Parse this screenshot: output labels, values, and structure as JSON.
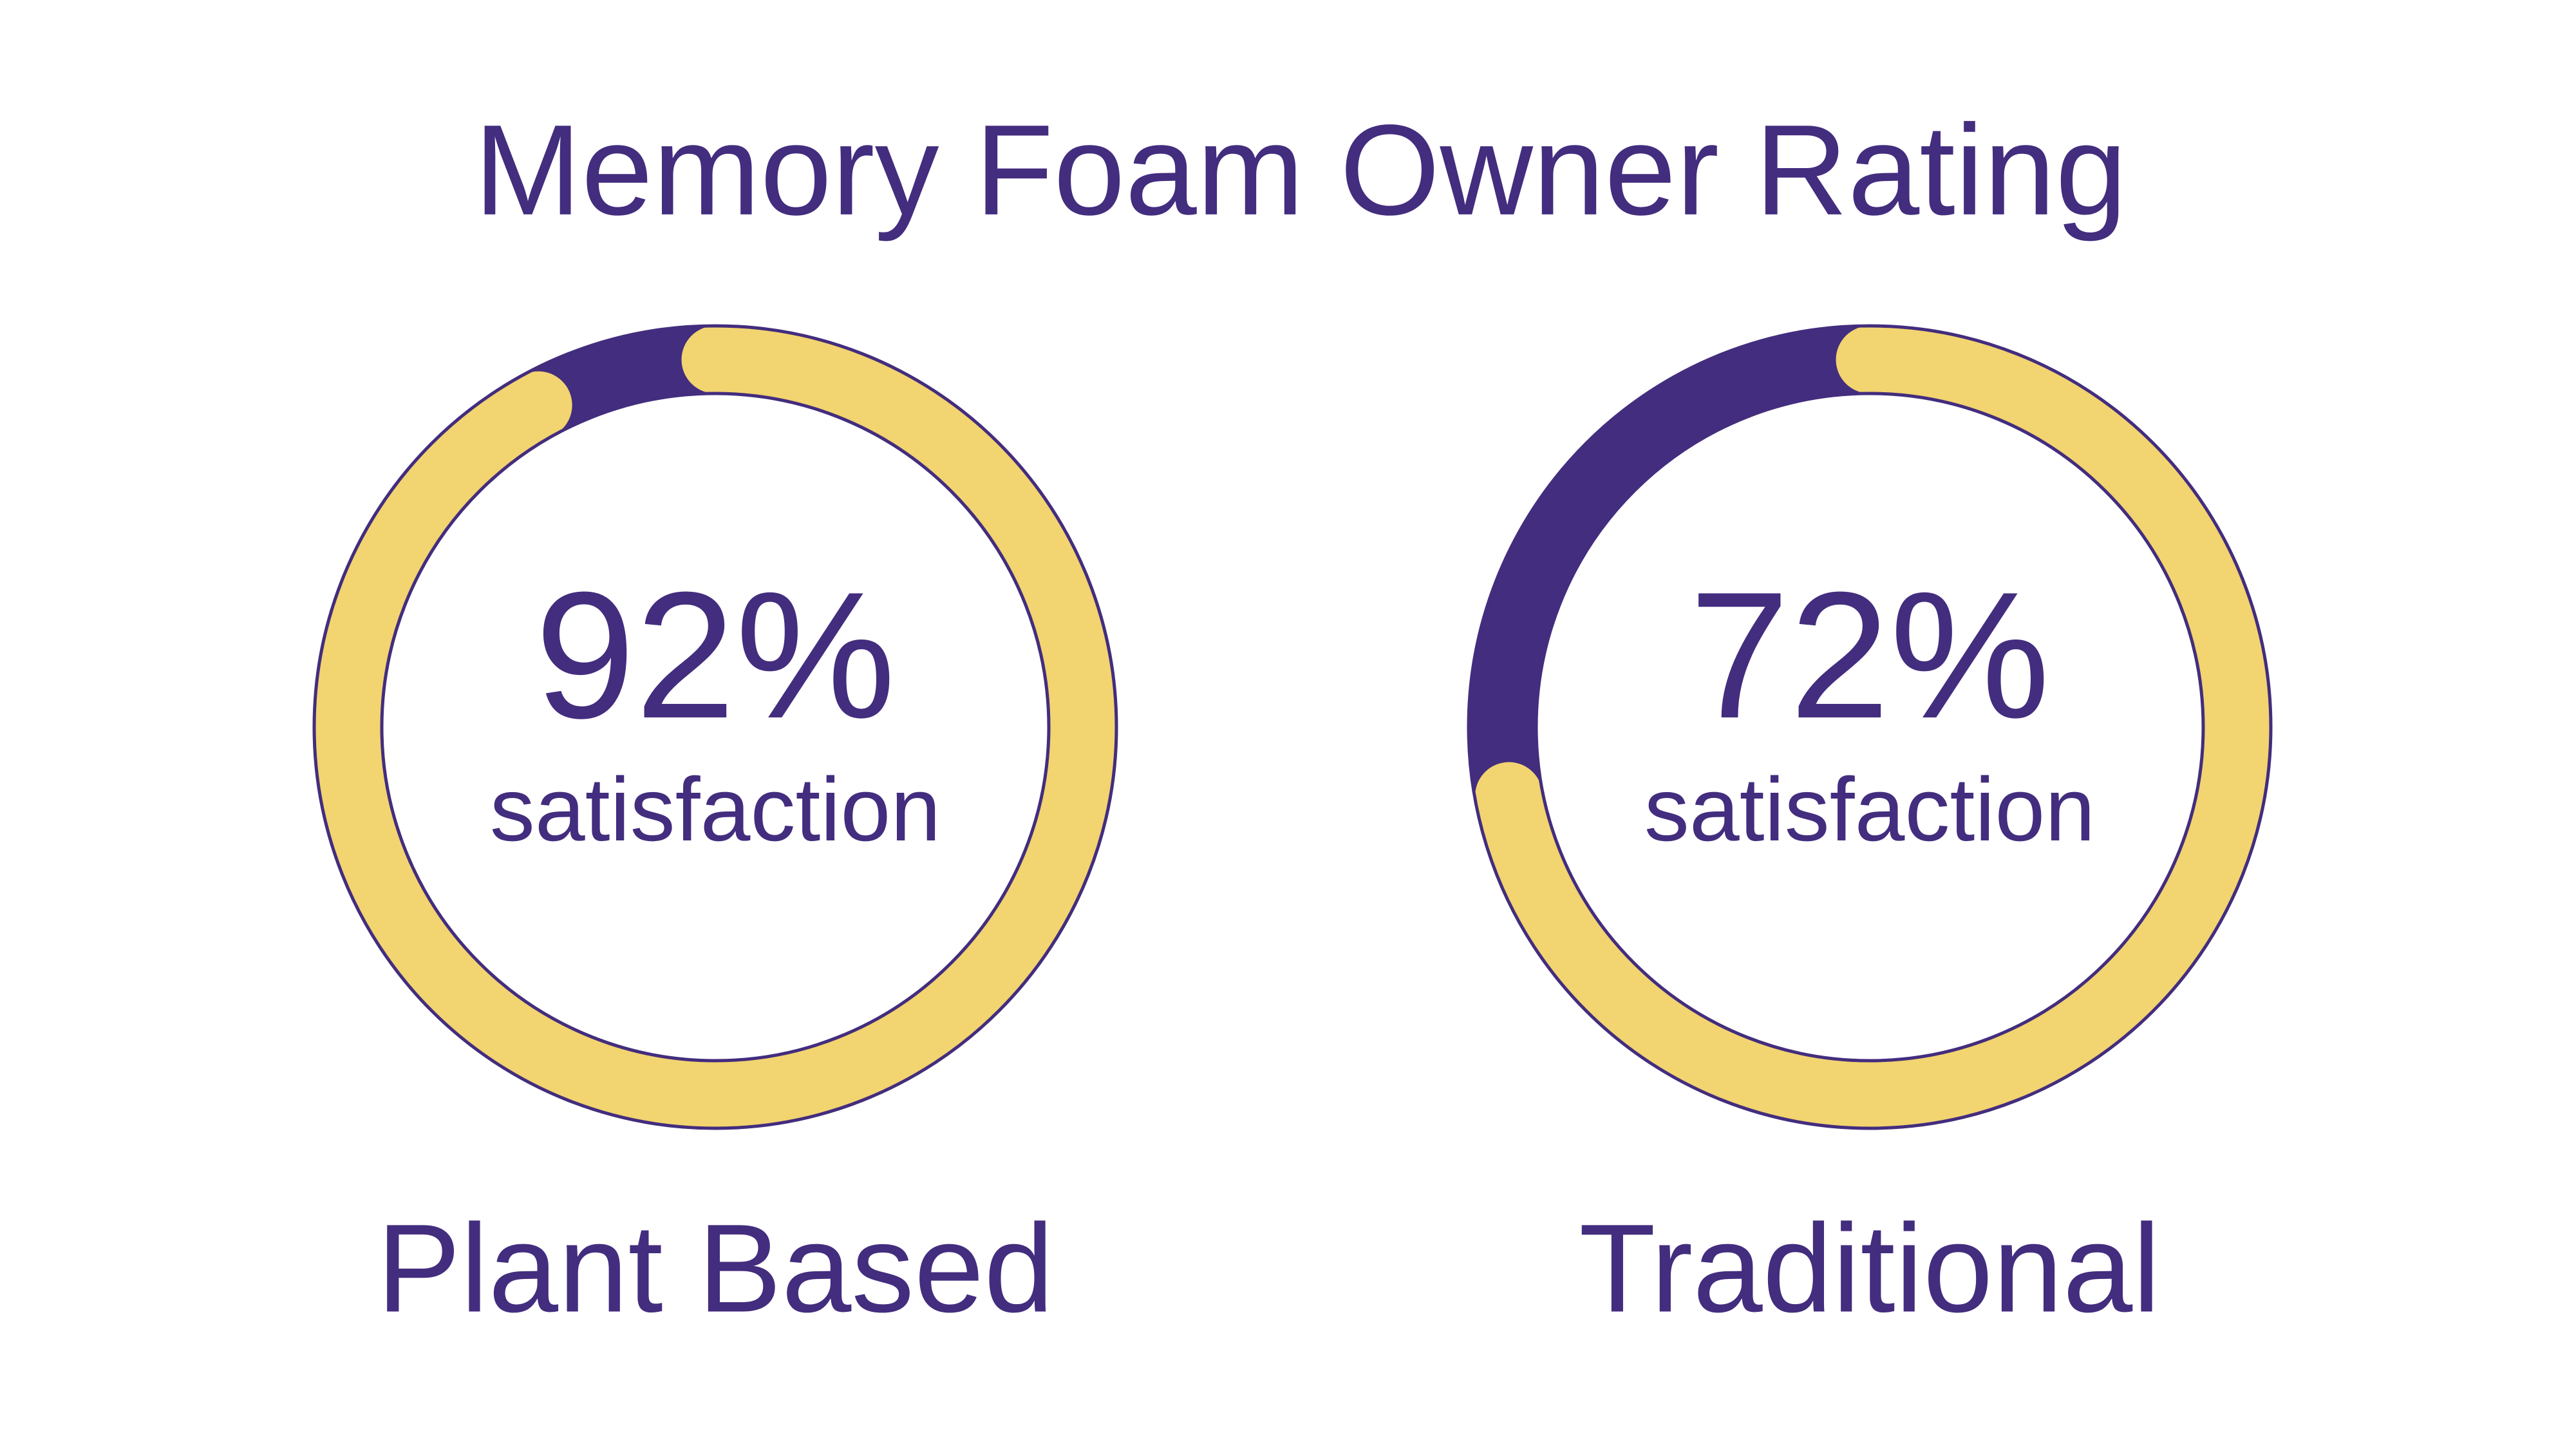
{
  "title": "Memory Foam Owner Rating",
  "chart_data": [
    {
      "type": "gauge",
      "name": "Plant Based",
      "values": [
        92
      ],
      "value_labels": [
        "92%"
      ],
      "subtitle": "satisfaction",
      "ylim": [
        0,
        100
      ],
      "color": "#f2d470",
      "track_color": "#432d7e"
    },
    {
      "type": "gauge",
      "name": "Traditional",
      "values": [
        72
      ],
      "value_labels": [
        "72%"
      ],
      "subtitle": "satisfaction",
      "ylim": [
        0,
        100
      ],
      "color": "#f2d470",
      "track_color": "#432d7e"
    }
  ]
}
